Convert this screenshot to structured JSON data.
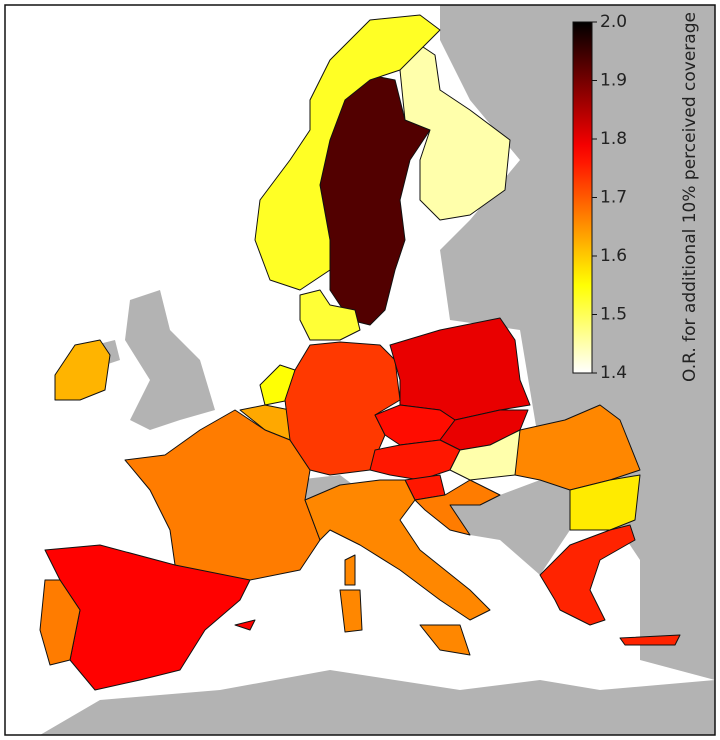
{
  "chart_data": {
    "type": "choropleth",
    "colorbar_label": "O.R. for additional 10% perceived coverage",
    "colormap": "hot_r",
    "clim": [
      1.4,
      2.0
    ],
    "cticks": [
      {
        "value": 1.4,
        "label": "1.4"
      },
      {
        "value": 1.5,
        "label": "1.5"
      },
      {
        "value": 1.6,
        "label": "1.6"
      },
      {
        "value": 1.7,
        "label": "1.7"
      },
      {
        "value": 1.8,
        "label": "1.8"
      },
      {
        "value": 1.9,
        "label": "1.9"
      },
      {
        "value": 2.0,
        "label": "2.0"
      }
    ],
    "values": [
      1.93,
      1.45,
      1.53,
      1.52,
      1.62,
      1.55,
      1.63,
      1.67,
      1.78,
      1.67,
      1.73,
      1.8,
      1.77,
      1.8,
      1.76,
      1.45,
      1.76,
      1.67,
      1.66,
      1.66,
      1.57,
      1.75
    ]
  }
}
